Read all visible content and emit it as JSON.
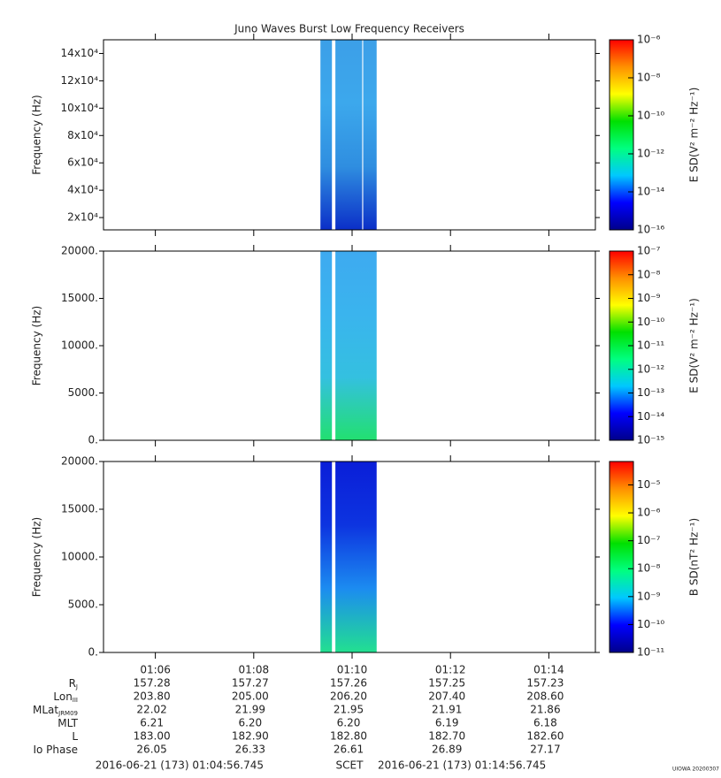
{
  "chart_data": [
    {
      "type": "spectrogram",
      "title": "Juno Waves Burst Low Frequency Receivers",
      "y_label": "Frequency (Hz)",
      "colorbar_label": "E SD(V² m⁻² Hz⁻¹)",
      "xlim": [
        4.9458,
        14.9458
      ],
      "xticks": [
        6,
        8,
        10,
        12,
        14
      ],
      "ylim": [
        11000,
        150000
      ],
      "yticks": [
        {
          "value": 20000,
          "label": "2x10⁴"
        },
        {
          "value": 40000,
          "label": "4x10⁴"
        },
        {
          "value": 60000,
          "label": "6x10⁴"
        },
        {
          "value": 80000,
          "label": "8x10⁴"
        },
        {
          "value": 100000,
          "label": "10x10⁴"
        },
        {
          "value": 120000,
          "label": "12x10⁴"
        },
        {
          "value": 140000,
          "label": "14x10⁴"
        }
      ],
      "clim": [
        1e-16,
        1e-06
      ],
      "log_color": true,
      "cticks": [
        {
          "value": 1e-16,
          "label": "10⁻¹⁶"
        },
        {
          "value": 1e-14,
          "label": "10⁻¹⁴"
        },
        {
          "value": 1e-12,
          "label": "10⁻¹²"
        },
        {
          "value": 1e-10,
          "label": "10⁻¹⁰"
        },
        {
          "value": 1e-08,
          "label": "10⁻⁸"
        },
        {
          "value": 1e-06,
          "label": "10⁻⁶"
        }
      ],
      "segments": [
        [
          9.356,
          9.59
        ],
        [
          9.66,
          10.205
        ],
        [
          10.225,
          10.499
        ]
      ],
      "colors": [
        "#3c9fe8",
        "#3ca8ec",
        "#2f8ee0",
        "#0b2fc8"
      ]
    },
    {
      "type": "spectrogram",
      "y_label": "Frequency (Hz)",
      "colorbar_label": "E SD(V² m⁻² Hz⁻¹)",
      "xlim": [
        4.9458,
        14.9458
      ],
      "xticks": [
        6,
        8,
        10,
        12,
        14
      ],
      "ylim": [
        0,
        20000
      ],
      "yticks": [
        {
          "value": 0,
          "label": "0."
        },
        {
          "value": 5000,
          "label": "5000."
        },
        {
          "value": 10000,
          "label": "10000."
        },
        {
          "value": 15000,
          "label": "15000."
        },
        {
          "value": 20000,
          "label": "20000."
        }
      ],
      "clim": [
        1e-15,
        1e-07
      ],
      "log_color": true,
      "cticks": [
        {
          "value": 1e-15,
          "label": "10⁻¹⁵"
        },
        {
          "value": 1e-14,
          "label": "10⁻¹⁴"
        },
        {
          "value": 1e-13,
          "label": "10⁻¹³"
        },
        {
          "value": 1e-12,
          "label": "10⁻¹²"
        },
        {
          "value": 1e-11,
          "label": "10⁻¹¹"
        },
        {
          "value": 1e-10,
          "label": "10⁻¹⁰"
        },
        {
          "value": 1e-09,
          "label": "10⁻⁹"
        },
        {
          "value": 1e-08,
          "label": "10⁻⁸"
        },
        {
          "value": 1e-07,
          "label": "10⁻⁷"
        }
      ],
      "segments": [
        [
          9.356,
          9.59
        ],
        [
          9.66,
          10.499
        ]
      ],
      "colors": [
        "#3eaaf0",
        "#3ab4ee",
        "#34c0e0",
        "#22e070"
      ]
    },
    {
      "type": "spectrogram",
      "y_label": "Frequency (Hz)",
      "colorbar_label": "B SD(nT² Hz⁻¹)",
      "xlim": [
        4.9458,
        14.9458
      ],
      "xticks": [
        {
          "value": 6,
          "label": "01:06"
        },
        {
          "value": 8,
          "label": "01:08"
        },
        {
          "value": 10,
          "label": "01:10"
        },
        {
          "value": 12,
          "label": "01:12"
        },
        {
          "value": 14,
          "label": "01:14"
        }
      ],
      "ylim": [
        0,
        20000
      ],
      "yticks": [
        {
          "value": 0,
          "label": "0."
        },
        {
          "value": 5000,
          "label": "5000."
        },
        {
          "value": 10000,
          "label": "10000."
        },
        {
          "value": 15000,
          "label": "15000."
        },
        {
          "value": 20000,
          "label": "20000."
        }
      ],
      "clim": [
        1e-11,
        6.9e-05
      ],
      "log_color": true,
      "cticks": [
        {
          "value": 1e-11,
          "label": "10⁻¹¹"
        },
        {
          "value": 1e-10,
          "label": "10⁻¹⁰"
        },
        {
          "value": 1e-09,
          "label": "10⁻⁹"
        },
        {
          "value": 1e-08,
          "label": "10⁻⁸"
        },
        {
          "value": 1e-07,
          "label": "10⁻⁷"
        },
        {
          "value": 1e-06,
          "label": "10⁻⁶"
        },
        {
          "value": 1e-05,
          "label": "10⁻⁵"
        }
      ],
      "segments": [
        [
          9.356,
          9.59
        ],
        [
          9.66,
          10.499
        ]
      ],
      "colors": [
        "#0a1ed8",
        "#0d34e0",
        "#1c8cf0",
        "#22e090"
      ]
    }
  ],
  "colormap": [
    "#00008b",
    "#0000ff",
    "#00c8ff",
    "#00ff80",
    "#00e000",
    "#ffff00",
    "#ff9000",
    "#ff0000"
  ],
  "ephemeris": [
    {
      "name": "R",
      "sub": "J",
      "values": [
        "157.28",
        "157.27",
        "157.26",
        "157.25",
        "157.23"
      ]
    },
    {
      "name": "Lon",
      "sub": "III",
      "values": [
        "203.80",
        "205.00",
        "206.20",
        "207.40",
        "208.60"
      ]
    },
    {
      "name": "MLat",
      "sub": "JRM09",
      "values": [
        "22.02",
        "21.99",
        "21.95",
        "21.91",
        "21.86"
      ]
    },
    {
      "name": "MLT",
      "values": [
        "6.21",
        "6.20",
        "6.20",
        "6.19",
        "6.18"
      ]
    },
    {
      "name": "L",
      "values": [
        "183.00",
        "182.90",
        "182.80",
        "182.70",
        "182.60"
      ]
    },
    {
      "name": "Io Phase",
      "values": [
        "26.05",
        "26.33",
        "26.61",
        "26.89",
        "27.17"
      ]
    }
  ],
  "footer": {
    "start": "2016-06-21 (173) 01:04:56.745",
    "scet": "SCET",
    "end": "2016-06-21 (173) 01:14:56.745",
    "credit": "UIOWA 20200307"
  }
}
